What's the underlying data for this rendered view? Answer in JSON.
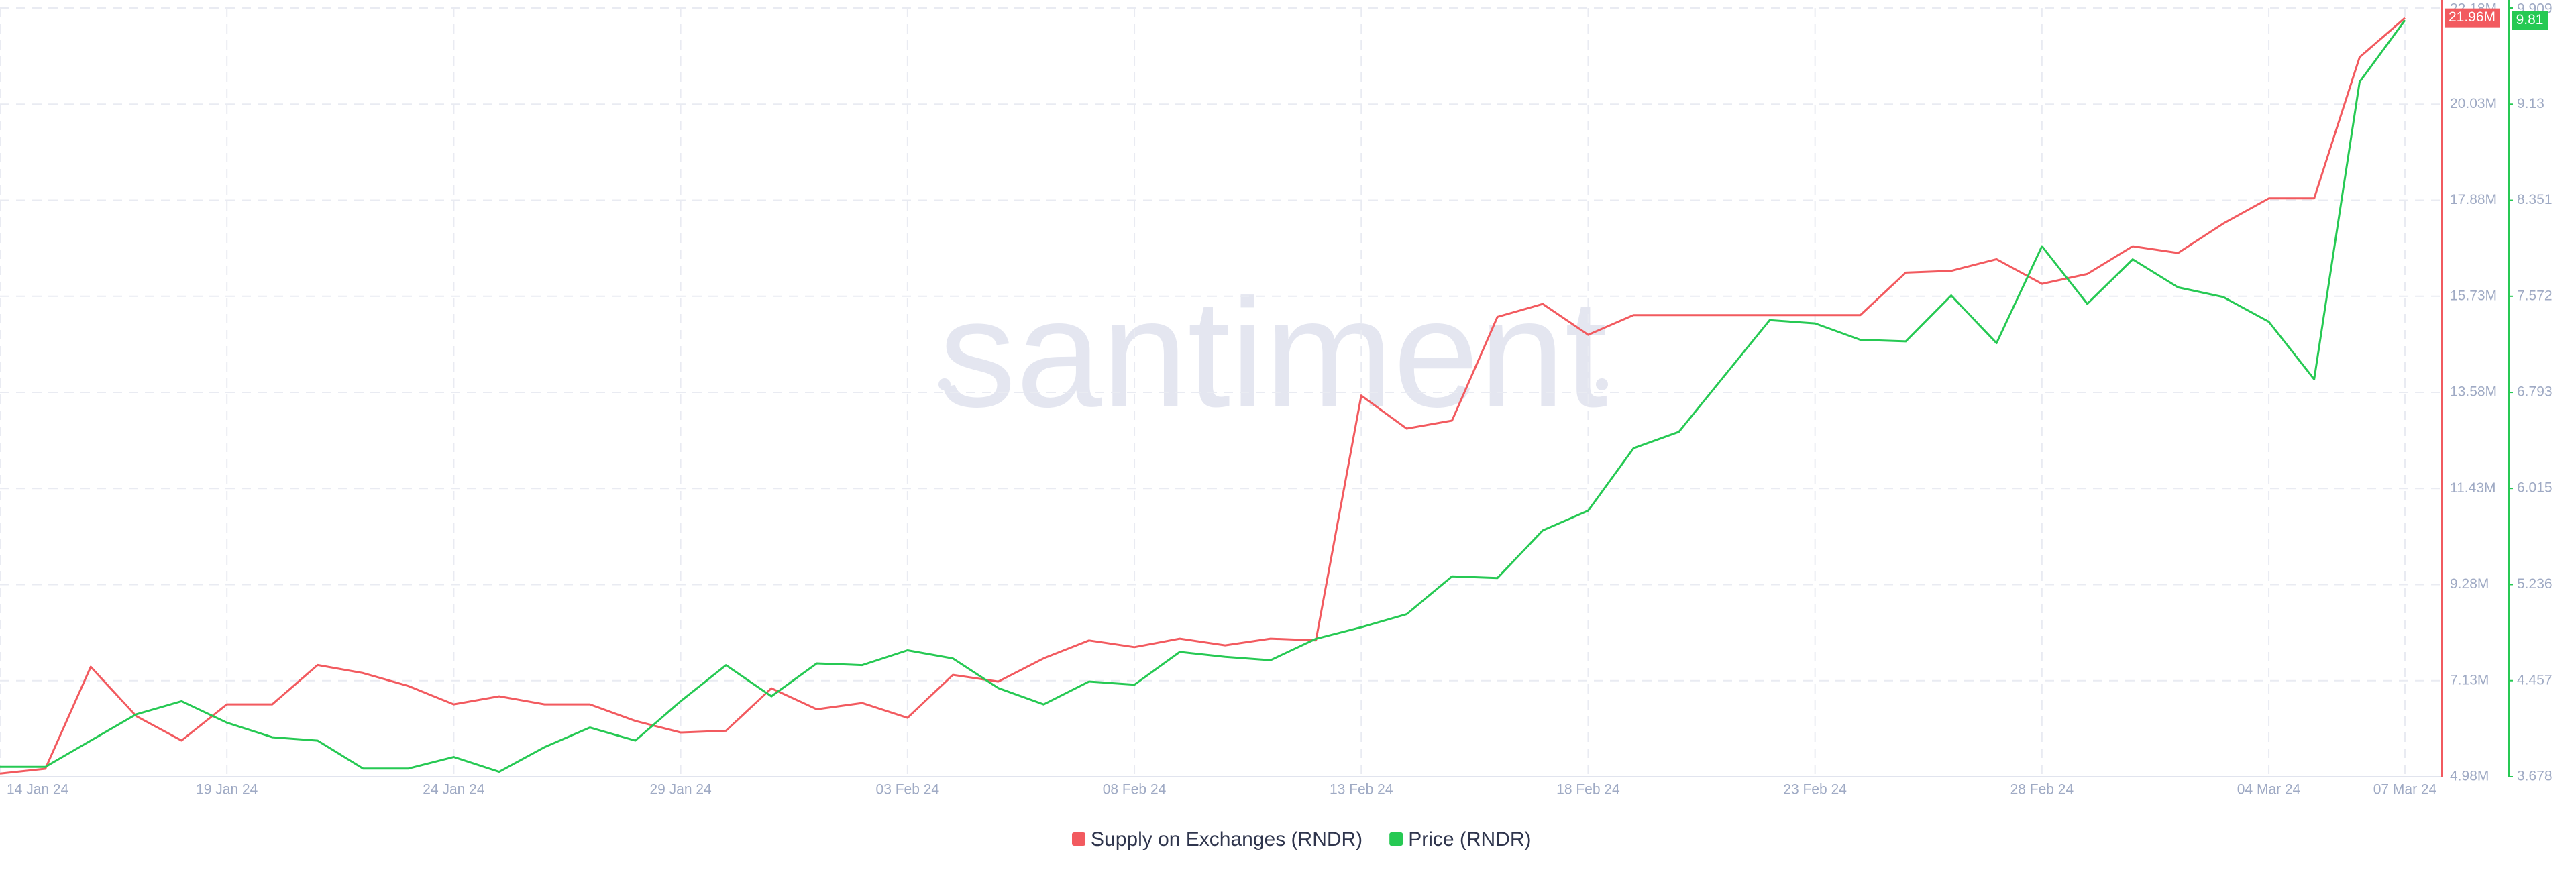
{
  "chart_data": {
    "type": "line",
    "watermark": "santiment",
    "categories": [
      "14 Jan 24",
      null,
      null,
      null,
      null,
      "19 Jan 24",
      null,
      null,
      null,
      null,
      "24 Jan 24",
      null,
      null,
      null,
      null,
      "29 Jan 24",
      null,
      null,
      null,
      null,
      "03 Feb 24",
      null,
      null,
      null,
      null,
      "08 Feb 24",
      null,
      null,
      null,
      null,
      "13 Feb 24",
      null,
      null,
      null,
      null,
      "18 Feb 24",
      null,
      null,
      null,
      null,
      "23 Feb 24",
      null,
      null,
      null,
      null,
      "28 Feb 24",
      null,
      null,
      null,
      null,
      "04 Mar 24",
      null,
      null,
      "07 Mar 24"
    ],
    "series": [
      {
        "name": "Supply on Exchanges (RNDR)",
        "color": "#f25a5f",
        "axis": "y",
        "last_value_label": "21.96M",
        "values": [
          5.05,
          5.16,
          7.44,
          6.34,
          5.79,
          6.6,
          6.6,
          7.48,
          7.3,
          7.01,
          6.6,
          6.78,
          6.6,
          6.6,
          6.23,
          5.97,
          6.01,
          6.96,
          6.49,
          6.63,
          6.3,
          7.26,
          7.11,
          7.63,
          8.03,
          7.88,
          8.07,
          7.92,
          8.07,
          8.03,
          13.51,
          12.77,
          12.95,
          15.27,
          15.56,
          14.87,
          15.31,
          15.31,
          15.31,
          15.31,
          15.31,
          15.31,
          16.26,
          16.3,
          16.56,
          16.01,
          16.23,
          16.85,
          16.7,
          17.36,
          17.92,
          17.92,
          21.08,
          21.96
        ]
      },
      {
        "name": "Price (RNDR)",
        "color": "#26c953",
        "axis": "y2",
        "values": [
          3.758,
          3.758,
          3.971,
          4.184,
          4.29,
          4.117,
          3.998,
          3.971,
          3.745,
          3.745,
          3.838,
          3.718,
          3.918,
          4.077,
          3.971,
          4.29,
          4.583,
          4.33,
          4.597,
          4.583,
          4.703,
          4.637,
          4.397,
          4.264,
          4.45,
          4.424,
          4.69,
          4.65,
          4.623,
          4.796,
          4.89,
          4.996,
          5.302,
          5.289,
          5.675,
          5.835,
          6.341,
          6.474,
          6.927,
          7.379,
          7.353,
          7.22,
          7.207,
          7.579,
          7.193,
          7.978,
          7.512,
          7.872,
          7.645,
          7.566,
          7.366,
          6.9,
          9.31,
          9.81
        ]
      }
    ],
    "ylim": [
      4.98,
      22.18
    ],
    "yticks": [
      {
        "value": 4.98,
        "label": "4.98M"
      },
      {
        "value": 7.13,
        "label": "7.13M"
      },
      {
        "value": 9.28,
        "label": "9.28M"
      },
      {
        "value": 11.43,
        "label": "11.43M"
      },
      {
        "value": 13.58,
        "label": "13.58M"
      },
      {
        "value": 15.73,
        "label": "15.73M"
      },
      {
        "value": 17.88,
        "label": "17.88M"
      },
      {
        "value": 20.03,
        "label": "20.03M"
      },
      {
        "value": 22.18,
        "label": "22.18M"
      }
    ],
    "y2lim": [
      3.678,
      9.909
    ],
    "y2ticks": [
      3.678,
      4.457,
      5.236,
      6.015,
      6.793,
      7.572,
      8.351,
      9.13,
      9.909
    ],
    "grid": true,
    "legend": "bottom"
  }
}
